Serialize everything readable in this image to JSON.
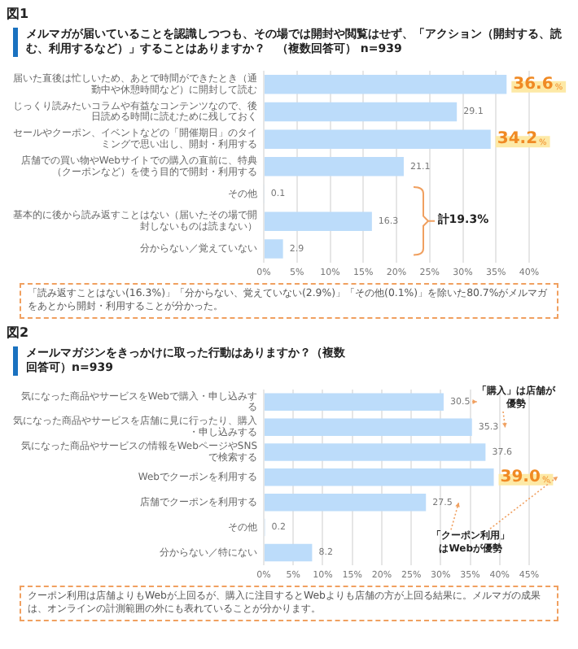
{
  "chart_data": [
    {
      "type": "bar",
      "orientation": "horizontal",
      "title": "メルマガが届いていることを認識しつつも、その場では開封や閲覧はせず、「アクション（開封する、読む、利用するなど）」することはありますか？　（複数回答可） n=939",
      "categories": [
        "届いた直後は忙しいため、あとで時間ができたとき（通勤中や休憩時間など）に開封して読む",
        "じっくり読みたいコラムや有益なコンテンツなので、後日読める時間に読むために残しておく",
        "セールやクーポン、イベントなどの「開催期日」のタイミングで思い出し、開封・利用する",
        "店舗での買い物やWebサイトでの購入の直前に、特典（クーポンなど）を使う目的で開封・利用する",
        "その他",
        "基本的に後から読み返すことはない（届いたその場で開封しないものは読まない）",
        "分からない／覚えていない"
      ],
      "values": [
        36.6,
        29.1,
        34.2,
        21.1,
        0.1,
        16.3,
        2.9
      ],
      "value_labels": [
        "36.6%",
        "29.1",
        "34.2%",
        "21.1",
        "0.1",
        "16.3",
        "2.9"
      ],
      "color": "#bcdcfa",
      "xlim": [
        0,
        40
      ],
      "xticks": [
        {
          "value": 0,
          "label": "0%"
        },
        {
          "value": 5,
          "label": "5%"
        },
        {
          "value": 10,
          "label": "10%"
        },
        {
          "value": 15,
          "label": "15%"
        },
        {
          "value": 20,
          "label": "20%"
        },
        {
          "value": 25,
          "label": "25%"
        },
        {
          "value": 30,
          "label": "30%"
        },
        {
          "value": 35,
          "label": "35%"
        },
        {
          "value": 40,
          "label": "40%"
        }
      ],
      "grid": "x",
      "annotations": [
        "図1",
        "計19.3%",
        "「読み返すことはない(16.3%)」「分からない、覚えていない(2.9%)」「その他(0.1%)」を除いた80.7%がメルマガをあとから開封・利用することが分かった。"
      ]
    },
    {
      "type": "bar",
      "orientation": "horizontal",
      "title": "メールマガジンをきっかけに取った行動はありますか？（複数回答可）n=939",
      "categories": [
        "気になった商品やサービスをWebで購入・申し込みする",
        "気になった商品やサービスを店舗に見に行ったり、購入・申し込みする",
        "気になった商品やサービスの情報をWebページやSNSで検索する",
        "Webでクーポンを利用する",
        "店舗でクーポンを利用する",
        "その他",
        "分からない／特にない"
      ],
      "values": [
        30.5,
        35.3,
        37.6,
        39.0,
        27.5,
        0.2,
        8.2
      ],
      "value_labels": [
        "30.5",
        "35.3",
        "37.6",
        "39.0%",
        "27.5",
        "0.2",
        "8.2"
      ],
      "color": "#bcdcfa",
      "xlim": [
        0,
        45
      ],
      "xticks": [
        {
          "value": 0,
          "label": "0%"
        },
        {
          "value": 5,
          "label": "5%"
        },
        {
          "value": 10,
          "label": "10%"
        },
        {
          "value": 15,
          "label": "15%"
        },
        {
          "value": 20,
          "label": "20%"
        },
        {
          "value": 25,
          "label": "25%"
        },
        {
          "value": 30,
          "label": "30%"
        },
        {
          "value": 35,
          "label": "35%"
        },
        {
          "value": 40,
          "label": "40%"
        },
        {
          "value": 45,
          "label": "45%"
        }
      ],
      "grid": "x",
      "annotations": [
        "図2",
        "「購入」は店舗が優勢",
        "「クーポン利用」はWebが優勢",
        "クーポン利用は店舗よりもWebが上回るが、購入に注目するとWebよりも店舗の方が上回る結果に。メルマガの成果は、オンラインの計測範囲の外にも表れていることが分かります。"
      ]
    }
  ]
}
